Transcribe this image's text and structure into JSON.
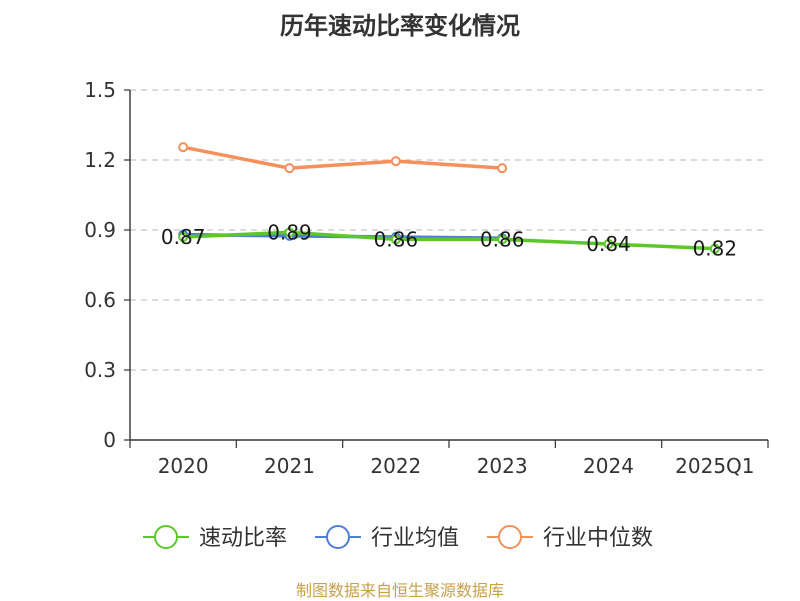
{
  "chart_data": {
    "type": "line",
    "title": "历年速动比率变化情况",
    "categories": [
      "2020",
      "2021",
      "2022",
      "2023",
      "2024",
      "2025Q1"
    ],
    "y_ticks": [
      "0",
      "0.3",
      "0.6",
      "0.9",
      "1.2",
      "1.5"
    ],
    "ylim": [
      0,
      1.5
    ],
    "grid": true,
    "legend_position": "bottom",
    "series": [
      {
        "name": "速动比率",
        "color": "#5cc72a",
        "values": [
          0.87,
          0.89,
          0.86,
          0.86,
          0.84,
          0.82
        ],
        "labels": [
          "0.87",
          "0.89",
          "0.86",
          "0.86",
          "0.84",
          "0.82"
        ]
      },
      {
        "name": "行业均值",
        "color": "#4f7ed6",
        "values": [
          0.88,
          0.875,
          0.87,
          0.865,
          null,
          null
        ]
      },
      {
        "name": "行业中位数",
        "color": "#f5905a",
        "values": [
          1.255,
          1.165,
          1.195,
          1.165,
          null,
          null
        ]
      }
    ]
  },
  "source_note": "制图数据来自恒生聚源数据库"
}
